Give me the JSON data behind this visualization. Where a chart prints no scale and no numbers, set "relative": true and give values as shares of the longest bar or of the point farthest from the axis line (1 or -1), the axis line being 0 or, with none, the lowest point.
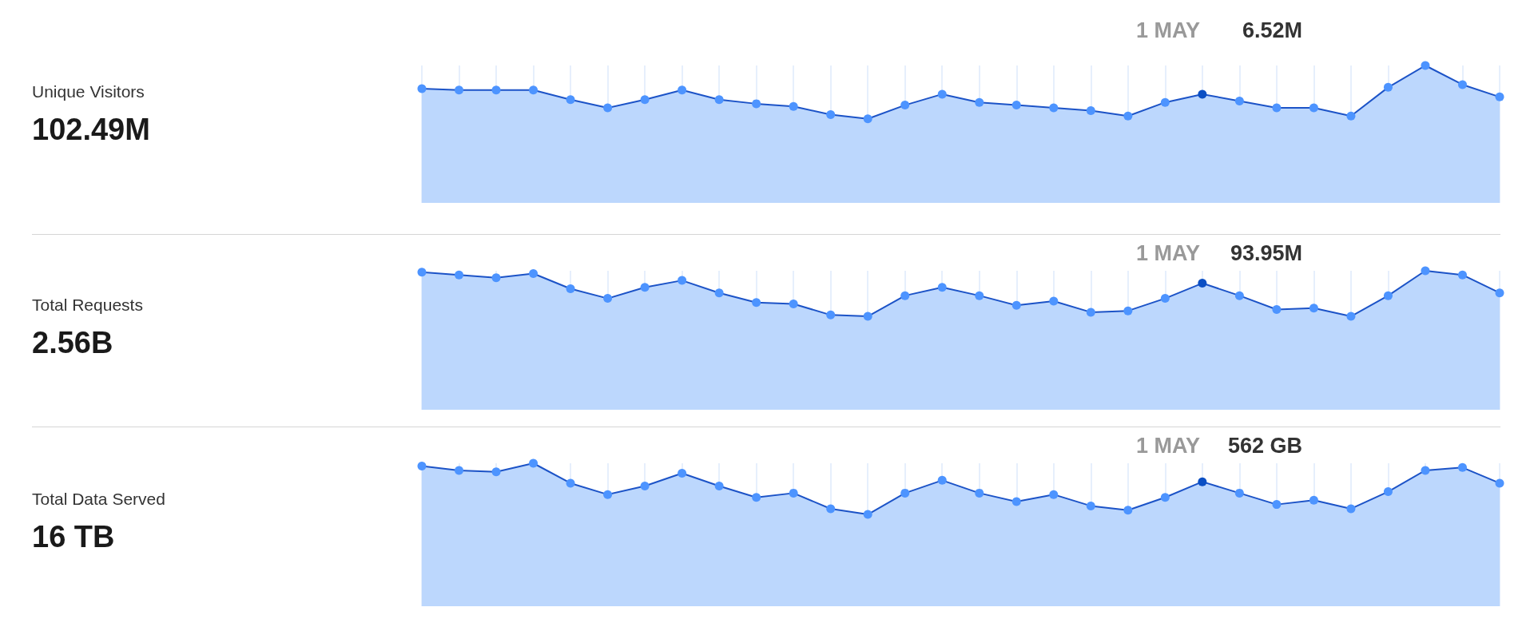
{
  "chart_data": [
    {
      "type": "other",
      "title": "Unique Visitors",
      "subtitle": "102.49M"
    },
    {
      "type": "area",
      "relative": true,
      "grid": "x",
      "marker": "circle",
      "categories": [
        null,
        null,
        null,
        null,
        null,
        null,
        null,
        null,
        null,
        null,
        null,
        null,
        null,
        null,
        null,
        null,
        null,
        null,
        null,
        null,
        null,
        null,
        null,
        null,
        null,
        null,
        null,
        null,
        null,
        null
      ],
      "annotations": [
        "1 MAY",
        "6.52M"
      ],
      "series": [
        {
          "color": "#1c53c7",
          "colors": [
            "#4d94ff",
            "#4d94ff",
            "#4d94ff",
            "#4d94ff",
            "#4d94ff",
            "#4d94ff",
            "#4d94ff",
            "#4d94ff",
            "#4d94ff",
            "#4d94ff",
            "#4d94ff",
            "#4d94ff",
            "#4d94ff",
            "#4d94ff",
            "#4d94ff",
            "#4d94ff",
            "#4d94ff",
            "#4d94ff",
            "#4d94ff",
            "#4d94ff",
            "#4d94ff",
            "#0b4fc4",
            "#4d94ff",
            "#4d94ff",
            "#4d94ff",
            "#4d94ff",
            "#4d94ff",
            "#4d94ff",
            "#4d94ff",
            "#4d94ff"
          ],
          "values": [
            0.83,
            0.82,
            0.82,
            0.82,
            0.75,
            0.69,
            0.75,
            0.82,
            0.75,
            0.72,
            0.7,
            0.64,
            0.61,
            0.71,
            0.79,
            0.73,
            0.71,
            0.69,
            0.67,
            0.63,
            0.73,
            0.79,
            0.74,
            0.69,
            0.69,
            0.63,
            0.84,
            1,
            0.86,
            0.77
          ]
        }
      ]
    },
    {
      "type": "other",
      "title": "Total Requests",
      "subtitle": "2.56B"
    },
    {
      "type": "area",
      "relative": true,
      "grid": "x",
      "marker": "circle",
      "categories": [
        null,
        null,
        null,
        null,
        null,
        null,
        null,
        null,
        null,
        null,
        null,
        null,
        null,
        null,
        null,
        null,
        null,
        null,
        null,
        null,
        null,
        null,
        null,
        null,
        null,
        null,
        null,
        null,
        null,
        null
      ],
      "annotations": [
        "1 MAY",
        "93.95M"
      ],
      "series": [
        {
          "color": "#1c53c7",
          "colors": [
            "#4d94ff",
            "#4d94ff",
            "#4d94ff",
            "#4d94ff",
            "#4d94ff",
            "#4d94ff",
            "#4d94ff",
            "#4d94ff",
            "#4d94ff",
            "#4d94ff",
            "#4d94ff",
            "#4d94ff",
            "#4d94ff",
            "#4d94ff",
            "#4d94ff",
            "#4d94ff",
            "#4d94ff",
            "#4d94ff",
            "#4d94ff",
            "#4d94ff",
            "#4d94ff",
            "#0b4fc4",
            "#4d94ff",
            "#4d94ff",
            "#4d94ff",
            "#4d94ff",
            "#4d94ff",
            "#4d94ff",
            "#4d94ff",
            "#4d94ff"
          ],
          "values": [
            0.99,
            0.97,
            0.95,
            0.98,
            0.87,
            0.8,
            0.88,
            0.93,
            0.84,
            0.77,
            0.76,
            0.68,
            0.67,
            0.82,
            0.88,
            0.82,
            0.75,
            0.78,
            0.7,
            0.71,
            0.8,
            0.91,
            0.82,
            0.72,
            0.73,
            0.67,
            0.82,
            1,
            0.97,
            0.84
          ]
        }
      ]
    },
    {
      "type": "other",
      "title": "Total Data Served",
      "subtitle": "16 TB"
    },
    {
      "type": "area",
      "relative": true,
      "grid": "x",
      "marker": "circle",
      "categories": [
        null,
        null,
        null,
        null,
        null,
        null,
        null,
        null,
        null,
        null,
        null,
        null,
        null,
        null,
        null,
        null,
        null,
        null,
        null,
        null,
        null,
        null,
        null,
        null,
        null,
        null,
        null,
        null,
        null,
        null
      ],
      "annotations": [
        "1 MAY",
        "562 GB"
      ],
      "series": [
        {
          "color": "#1c53c7",
          "colors": [
            "#4d94ff",
            "#4d94ff",
            "#4d94ff",
            "#4d94ff",
            "#4d94ff",
            "#4d94ff",
            "#4d94ff",
            "#4d94ff",
            "#4d94ff",
            "#4d94ff",
            "#4d94ff",
            "#4d94ff",
            "#4d94ff",
            "#4d94ff",
            "#4d94ff",
            "#4d94ff",
            "#4d94ff",
            "#4d94ff",
            "#4d94ff",
            "#4d94ff",
            "#4d94ff",
            "#0b4fc4",
            "#4d94ff",
            "#4d94ff",
            "#4d94ff",
            "#4d94ff",
            "#4d94ff",
            "#4d94ff",
            "#4d94ff",
            "#4d94ff"
          ],
          "values": [
            0.98,
            0.95,
            0.94,
            1,
            0.86,
            0.78,
            0.84,
            0.93,
            0.84,
            0.76,
            0.79,
            0.68,
            0.64,
            0.79,
            0.88,
            0.79,
            0.73,
            0.78,
            0.7,
            0.67,
            0.76,
            0.87,
            0.79,
            0.71,
            0.74,
            0.68,
            0.8,
            0.95,
            0.97,
            0.86
          ]
        }
      ]
    }
  ]
}
